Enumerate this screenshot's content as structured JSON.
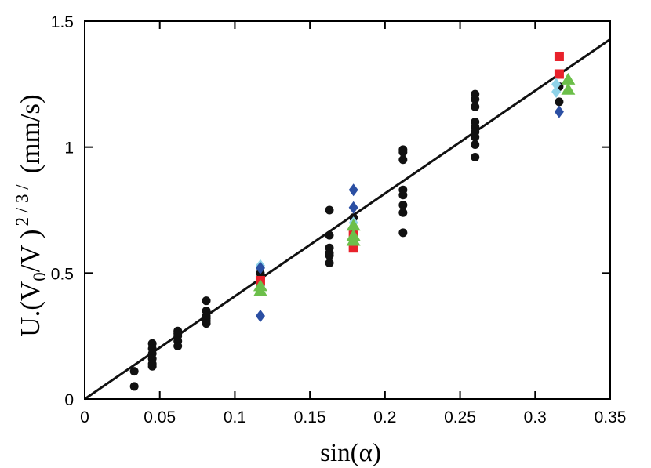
{
  "chart_data": {
    "type": "scatter",
    "title": "",
    "xlabel": "sin(α)",
    "ylabel": {
      "prefix": "U.(V",
      "sub": "0",
      "mid": "/V )",
      "sup": "2 / 3 /",
      "suffix": "(mm/s)"
    },
    "xlim": [
      0,
      0.35
    ],
    "ylim": [
      0,
      1.5
    ],
    "x_ticks": [
      {
        "value": 0,
        "label": "0"
      },
      {
        "value": 0.05,
        "label": "0.05"
      },
      {
        "value": 0.1,
        "label": "0.1"
      },
      {
        "value": 0.15,
        "label": "0.15"
      },
      {
        "value": 0.2,
        "label": "0.2"
      },
      {
        "value": 0.25,
        "label": "0.25"
      },
      {
        "value": 0.3,
        "label": "0.3"
      },
      {
        "value": 0.35,
        "label": "0.35"
      }
    ],
    "y_ticks": [
      {
        "value": 0,
        "label": "0"
      },
      {
        "value": 0.5,
        "label": "0.5"
      },
      {
        "value": 1,
        "label": "1"
      },
      {
        "value": 1.5,
        "label": "1.5"
      }
    ],
    "fit_line": {
      "slope": 4.08,
      "intercept": 0,
      "x_range": [
        0,
        0.35
      ],
      "color": "#111111"
    },
    "series": [
      {
        "name": "black circles",
        "marker": "circle",
        "color": "#111111",
        "points": [
          [
            0.033,
            0.11
          ],
          [
            0.033,
            0.05
          ],
          [
            0.045,
            0.22
          ],
          [
            0.045,
            0.2
          ],
          [
            0.045,
            0.18
          ],
          [
            0.045,
            0.16
          ],
          [
            0.045,
            0.14
          ],
          [
            0.045,
            0.13
          ],
          [
            0.062,
            0.27
          ],
          [
            0.062,
            0.26
          ],
          [
            0.062,
            0.25
          ],
          [
            0.062,
            0.23
          ],
          [
            0.062,
            0.21
          ],
          [
            0.081,
            0.39
          ],
          [
            0.081,
            0.35
          ],
          [
            0.081,
            0.33
          ],
          [
            0.081,
            0.32
          ],
          [
            0.081,
            0.31
          ],
          [
            0.081,
            0.3
          ],
          [
            0.117,
            0.5
          ],
          [
            0.117,
            0.48
          ],
          [
            0.117,
            0.46
          ],
          [
            0.117,
            0.45
          ],
          [
            0.117,
            0.44
          ],
          [
            0.163,
            0.75
          ],
          [
            0.163,
            0.65
          ],
          [
            0.163,
            0.6
          ],
          [
            0.163,
            0.58
          ],
          [
            0.163,
            0.57
          ],
          [
            0.163,
            0.54
          ],
          [
            0.179,
            0.72
          ],
          [
            0.179,
            0.68
          ],
          [
            0.212,
            0.99
          ],
          [
            0.212,
            0.98
          ],
          [
            0.212,
            0.95
          ],
          [
            0.212,
            0.83
          ],
          [
            0.212,
            0.81
          ],
          [
            0.212,
            0.77
          ],
          [
            0.212,
            0.74
          ],
          [
            0.212,
            0.66
          ],
          [
            0.26,
            1.21
          ],
          [
            0.26,
            1.19
          ],
          [
            0.26,
            1.16
          ],
          [
            0.26,
            1.1
          ],
          [
            0.26,
            1.08
          ],
          [
            0.26,
            1.06
          ],
          [
            0.26,
            1.04
          ],
          [
            0.26,
            1.01
          ],
          [
            0.26,
            0.96
          ],
          [
            0.316,
            1.24
          ],
          [
            0.316,
            1.18
          ]
        ]
      },
      {
        "name": "red squares",
        "marker": "square",
        "color": "#e8212b",
        "points": [
          [
            0.117,
            0.47
          ],
          [
            0.179,
            0.65
          ],
          [
            0.179,
            0.6
          ],
          [
            0.316,
            1.36
          ],
          [
            0.316,
            1.29
          ]
        ]
      },
      {
        "name": "cyan diamonds",
        "marker": "diamond",
        "color": "#8fd3e8",
        "points": [
          [
            0.117,
            0.53
          ],
          [
            0.179,
            0.7
          ],
          [
            0.314,
            1.25
          ],
          [
            0.314,
            1.22
          ]
        ]
      },
      {
        "name": "blue diamonds",
        "marker": "diamond",
        "color": "#2b4fa3",
        "points": [
          [
            0.117,
            0.52
          ],
          [
            0.117,
            0.33
          ],
          [
            0.179,
            0.83
          ],
          [
            0.179,
            0.76
          ],
          [
            0.316,
            1.14
          ]
        ]
      },
      {
        "name": "green triangles",
        "marker": "triangle",
        "color": "#6cbf4a",
        "points": [
          [
            0.117,
            0.45
          ],
          [
            0.117,
            0.43
          ],
          [
            0.179,
            0.69
          ],
          [
            0.179,
            0.65
          ],
          [
            0.179,
            0.63
          ],
          [
            0.322,
            1.27
          ],
          [
            0.322,
            1.23
          ]
        ]
      }
    ]
  }
}
